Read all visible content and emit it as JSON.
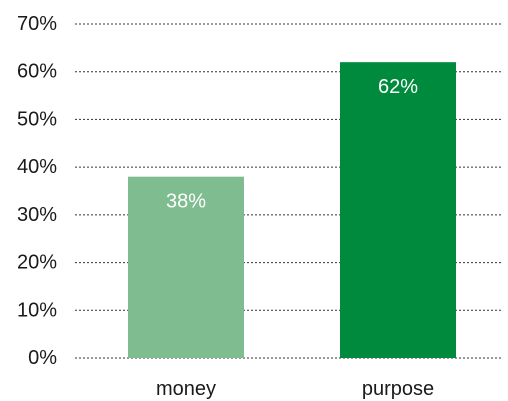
{
  "chart_data": {
    "type": "bar",
    "title": "",
    "xlabel": "",
    "ylabel": "",
    "categories": [
      "money",
      "purpose"
    ],
    "values": [
      38,
      62
    ],
    "data_labels": [
      "38%",
      "62%"
    ],
    "bar_colors": [
      "#7fbc8f",
      "#008a3e"
    ],
    "ylim": [
      0,
      70
    ],
    "yticks": [
      0,
      10,
      20,
      30,
      40,
      50,
      60,
      70
    ],
    "ytick_labels": [
      "0%",
      "10%",
      "20%",
      "30%",
      "40%",
      "50%",
      "60%",
      "70%"
    ],
    "grid": true,
    "grid_style": "dotted",
    "legend": false
  }
}
